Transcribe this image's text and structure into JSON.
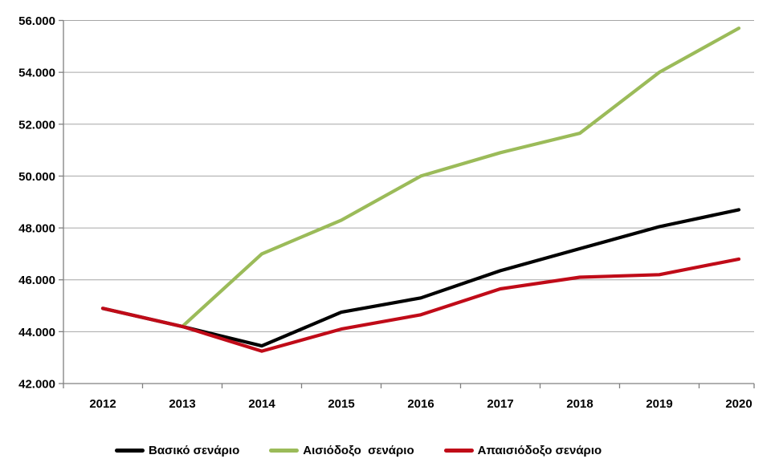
{
  "chart_data": {
    "type": "line",
    "title": "",
    "xlabel": "",
    "ylabel": "",
    "categories": [
      "2012",
      "2013",
      "2014",
      "2015",
      "2016",
      "2017",
      "2018",
      "2019",
      "2020"
    ],
    "y_axis": {
      "min": 42000,
      "max": 56000,
      "step": 2000,
      "tick_labels": [
        "56.000",
        "54.000",
        "52.000",
        "50.000",
        "48.000",
        "46.000",
        "44.000",
        "42.000"
      ]
    },
    "series": [
      {
        "name": "Βασικό σενάριο",
        "color": "#000000",
        "values": [
          44900,
          44200,
          43450,
          44750,
          45300,
          46350,
          47200,
          48050,
          48700
        ]
      },
      {
        "name": "Αισιόδοξο  σενάριο",
        "color": "#9BBB59",
        "values": [
          null,
          44200,
          47000,
          48300,
          50000,
          50900,
          51650,
          54000,
          55700
        ]
      },
      {
        "name": "Απαισιόδοξο σενάριο",
        "color": "#C00B18",
        "values": [
          44900,
          44200,
          43250,
          44100,
          44650,
          45650,
          46100,
          46200,
          46800
        ]
      }
    ],
    "legend_position": "bottom",
    "grid": "horizontal",
    "colors": {
      "gridline": "#A6A6A6",
      "axis": "#808080",
      "background": "#FFFFFF",
      "tick_text": "#000000"
    }
  }
}
